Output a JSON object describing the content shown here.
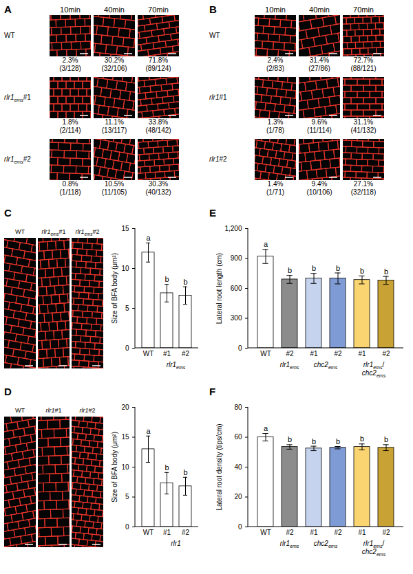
{
  "figure": {
    "panels": [
      {
        "letter": "A",
        "columns": [
          "10min",
          "40min",
          "70min"
        ],
        "rows": [
          {
            "label": [
              {
                "t": "WT"
              }
            ],
            "cells": [
              [
                "2.3%",
                "(3/128)"
              ],
              [
                "30.2%",
                "(32/106)"
              ],
              [
                "71.8%",
                "(89/124)"
              ]
            ]
          },
          {
            "label": [
              {
                "t": "rlr1",
                "sub": "ems"
              },
              {
                "t": "#1"
              }
            ],
            "cells": [
              [
                "1.8%",
                "(2/114)"
              ],
              [
                "11.1%",
                "(13/117)"
              ],
              [
                "33.8%",
                "(48/142)"
              ]
            ]
          },
          {
            "label": [
              {
                "t": "rlr1",
                "sub": "ems"
              },
              {
                "t": "#2"
              }
            ],
            "cells": [
              [
                "0.8%",
                "(1/118)"
              ],
              [
                "10.5%",
                "(11/105)"
              ],
              [
                "30.3%",
                "(40/132)"
              ]
            ]
          }
        ]
      },
      {
        "letter": "B",
        "columns": [
          "10min",
          "40min",
          "70min"
        ],
        "rows": [
          {
            "label": [
              {
                "t": "WT"
              }
            ],
            "cells": [
              [
                "2.4%",
                "(2/83)"
              ],
              [
                "31.4%",
                "(27/86)"
              ],
              [
                "72.7%",
                "(88/121)"
              ]
            ]
          },
          {
            "label": [
              {
                "t": "rlr1"
              },
              {
                "t": "#1"
              }
            ],
            "cells": [
              [
                "1.3%",
                "(1/78)"
              ],
              [
                "9.6%",
                "(11/114)"
              ],
              [
                "31.1%",
                "(41/132)"
              ]
            ]
          },
          {
            "label": [
              {
                "t": "rlr1"
              },
              {
                "t": "#2"
              }
            ],
            "cells": [
              [
                "1.4%",
                "(1/71)"
              ],
              [
                "9.4%",
                "(10/106)"
              ],
              [
                "27.1%",
                "(32/118)"
              ]
            ]
          }
        ]
      }
    ]
  },
  "chart_data": [
    {
      "panel": "C",
      "type": "bar",
      "image_labels": [
        [
          {
            "t": "WT"
          }
        ],
        [
          {
            "t": "rlr1",
            "sub": "ems"
          },
          {
            "t": "#1"
          }
        ],
        [
          {
            "t": "rlr1",
            "sub": "ems"
          },
          {
            "t": "#2"
          }
        ]
      ],
      "categories": [
        "WT",
        "#1",
        "#2"
      ],
      "groups": [
        {
          "label": [
            {
              "t": "rlr1",
              "sub": "ems"
            }
          ],
          "from": 1,
          "to": 2
        }
      ],
      "values": [
        12,
        6.9,
        6.6
      ],
      "errors": [
        1.2,
        1.1,
        1.1
      ],
      "significance": [
        "a",
        "b",
        "b"
      ],
      "colors": [
        "#ffffff",
        "#ffffff",
        "#ffffff"
      ],
      "ylabel": "Size of BFA body (μm²)",
      "ylim": [
        0,
        15
      ],
      "yticks": [
        0,
        5,
        10,
        15
      ]
    },
    {
      "panel": "D",
      "type": "bar",
      "image_labels": [
        [
          {
            "t": "WT"
          }
        ],
        [
          {
            "t": "rlr1"
          },
          {
            "t": "#1"
          }
        ],
        [
          {
            "t": "rlr1"
          },
          {
            "t": "#2"
          }
        ]
      ],
      "categories": [
        "WT",
        "#1",
        "#2"
      ],
      "groups": [
        {
          "label": [
            {
              "t": "rlr1"
            }
          ],
          "from": 1,
          "to": 2
        }
      ],
      "values": [
        13,
        7.3,
        6.8
      ],
      "errors": [
        2.2,
        1.8,
        1.5
      ],
      "significance": [
        "a",
        "b",
        "b"
      ],
      "colors": [
        "#ffffff",
        "#ffffff",
        "#ffffff"
      ],
      "ylabel": "Size of BFA body (μm²)",
      "ylim": [
        0,
        20
      ],
      "yticks": [
        0,
        5,
        10,
        15,
        20
      ]
    },
    {
      "panel": "E",
      "type": "bar",
      "categories": [
        "WT",
        "#2",
        "#1",
        "#2",
        "#1",
        "#2"
      ],
      "groups": [
        {
          "label": [
            {
              "t": "rlr1",
              "sub": "ems"
            }
          ],
          "from": 1,
          "to": 1
        },
        {
          "label": [
            {
              "t": "chc2",
              "sub": "ems"
            }
          ],
          "from": 2,
          "to": 3
        },
        {
          "label": [
            {
              "t": "rlr1",
              "sub": "ems"
            },
            {
              "t": "/"
            },
            {
              "t": "chc2",
              "sub": "ems"
            }
          ],
          "from": 4,
          "to": 5
        }
      ],
      "values": [
        920,
        690,
        700,
        700,
        685,
        680
      ],
      "errors": [
        70,
        40,
        50,
        55,
        40,
        40
      ],
      "significance": [
        "a",
        "b",
        "b",
        "b",
        "b",
        "b"
      ],
      "colors": [
        "#ffffff",
        "#8c8c8c",
        "#c5d3ee",
        "#7f9bd6",
        "#f9d470",
        "#c9a235"
      ],
      "ylabel": "Lateral root length (cm)",
      "ylim": [
        0,
        1200
      ],
      "yticks": [
        0,
        300,
        600,
        900,
        1200
      ]
    },
    {
      "panel": "F",
      "type": "bar",
      "categories": [
        "WT",
        "#2",
        "#1",
        "#2",
        "#1",
        "#2"
      ],
      "groups": [
        {
          "label": [
            {
              "t": "rlr1",
              "sub": "ems"
            }
          ],
          "from": 1,
          "to": 1
        },
        {
          "label": [
            {
              "t": "chc2",
              "sub": "ems"
            }
          ],
          "from": 2,
          "to": 3
        },
        {
          "label": [
            {
              "t": "rlr1",
              "sub": "ems"
            },
            {
              "t": "/"
            },
            {
              "t": "chc2",
              "sub": "ems"
            }
          ],
          "from": 4,
          "to": 5
        }
      ],
      "values": [
        60,
        53.5,
        52.5,
        53,
        53.5,
        53
      ],
      "errors": [
        2.5,
        1.5,
        1.5,
        0.8,
        2,
        2
      ],
      "significance": [
        "a",
        "b",
        "b",
        "b",
        "b",
        "b"
      ],
      "colors": [
        "#ffffff",
        "#8c8c8c",
        "#c5d3ee",
        "#7f9bd6",
        "#f9d470",
        "#c9a235"
      ],
      "ylabel": "Lateral root density (tips/cm)",
      "ylim": [
        0,
        80
      ],
      "yticks": [
        0,
        20,
        40,
        60,
        80
      ]
    }
  ]
}
